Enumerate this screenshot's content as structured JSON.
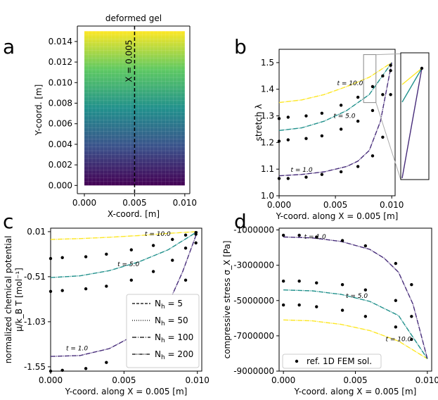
{
  "chart_data": [
    {
      "panel": "a",
      "type": "heatmap",
      "title": "deformed gel",
      "xlabel": "X-coord. [m]",
      "ylabel": "Y-coord. [m]",
      "xlim": [
        -0.0007,
        0.0105
      ],
      "ylim": [
        -0.0008,
        0.0155
      ],
      "xticks": [
        "0.000",
        "0.005",
        "0.010"
      ],
      "yticks": [
        "0.000",
        "0.002",
        "0.004",
        "0.006",
        "0.008",
        "0.010",
        "0.012",
        "0.014"
      ],
      "gel_x_range": [
        0.0,
        0.01
      ],
      "gel_y_range": [
        0.0,
        0.015
      ],
      "colormap": [
        "#440154",
        "#3b528b",
        "#21918c",
        "#5ec962",
        "#fde725"
      ],
      "cut_line_label": "X = 0.005",
      "cut_line_x": 0.005
    },
    {
      "panel": "b",
      "type": "line",
      "xlabel": "Y-coord. along X = 0.005 [m]",
      "ylabel": "stretch λ",
      "xlim": [
        0.0,
        0.0103
      ],
      "ylim": [
        1.0,
        1.55
      ],
      "xticks": [
        "0.000",
        "0.005",
        "0.010"
      ],
      "yticks": [
        "1.0",
        "1.1",
        "1.2",
        "1.3",
        "1.4",
        "1.5"
      ],
      "series": [
        {
          "name": "t = 10.0",
          "color": "#fde725",
          "x": [
            0.0,
            0.002,
            0.004,
            0.006,
            0.008,
            0.01
          ],
          "y": [
            1.35,
            1.36,
            1.38,
            1.41,
            1.445,
            1.5
          ]
        },
        {
          "name": "t = 5.0",
          "color": "#21918c",
          "x": [
            0.0,
            0.002,
            0.004,
            0.006,
            0.008,
            0.01
          ],
          "y": [
            1.245,
            1.255,
            1.28,
            1.32,
            1.38,
            1.5
          ]
        },
        {
          "name": "t = 1.0",
          "color": "#472c7a",
          "x": [
            0.0,
            0.002,
            0.004,
            0.006,
            0.007,
            0.008,
            0.009,
            0.01
          ],
          "y": [
            1.075,
            1.08,
            1.09,
            1.11,
            1.13,
            1.17,
            1.28,
            1.5
          ]
        }
      ],
      "series_labels": [
        "t = 10.0",
        "t = 5.0",
        "t = 1.0"
      ],
      "ref_points": [
        {
          "x": 0.0,
          "y": 1.29
        },
        {
          "x": 0.0008,
          "y": 1.295
        },
        {
          "x": 0.0024,
          "y": 1.3
        },
        {
          "x": 0.0038,
          "y": 1.31
        },
        {
          "x": 0.0055,
          "y": 1.34
        },
        {
          "x": 0.007,
          "y": 1.37
        },
        {
          "x": 0.0083,
          "y": 1.41
        },
        {
          "x": 0.0092,
          "y": 1.45
        },
        {
          "x": 0.0099,
          "y": 1.49
        },
        {
          "x": 0.0,
          "y": 1.205
        },
        {
          "x": 0.0008,
          "y": 1.21
        },
        {
          "x": 0.0024,
          "y": 1.215
        },
        {
          "x": 0.0038,
          "y": 1.225
        },
        {
          "x": 0.0055,
          "y": 1.25
        },
        {
          "x": 0.007,
          "y": 1.28
        },
        {
          "x": 0.0083,
          "y": 1.32
        },
        {
          "x": 0.0092,
          "y": 1.38
        },
        {
          "x": 0.0099,
          "y": 1.47
        },
        {
          "x": 0.0,
          "y": 1.065
        },
        {
          "x": 0.0008,
          "y": 1.065
        },
        {
          "x": 0.0024,
          "y": 1.07
        },
        {
          "x": 0.0038,
          "y": 1.08
        },
        {
          "x": 0.0055,
          "y": 1.09
        },
        {
          "x": 0.007,
          "y": 1.11
        },
        {
          "x": 0.0083,
          "y": 1.15
        },
        {
          "x": 0.0092,
          "y": 1.22
        },
        {
          "x": 0.0099,
          "y": 1.38
        }
      ]
    },
    {
      "panel": "c",
      "type": "line",
      "xlabel": "Y-coord. along X = 0.005 [m]",
      "ylabel": "normalized chemical potential",
      "ylabel_units": "μ/k_B T [mol⁻¹]",
      "xlim": [
        0.0,
        0.0103
      ],
      "ylim": [
        -1.6,
        0.05
      ],
      "xticks": [
        "0.000",
        "0.005",
        "0.010"
      ],
      "yticks": [
        "0.01",
        "-0.51",
        "-1.03",
        "-1.55"
      ],
      "series": [
        {
          "name": "t = 10.0",
          "color": "#fde725",
          "x": [
            0.0,
            0.002,
            0.004,
            0.006,
            0.008,
            0.01
          ],
          "y": [
            -0.08,
            -0.07,
            -0.055,
            -0.035,
            -0.01,
            0.01
          ]
        },
        {
          "name": "t = 5.0",
          "color": "#21918c",
          "x": [
            0.0,
            0.002,
            0.004,
            0.006,
            0.008,
            0.01
          ],
          "y": [
            -0.52,
            -0.5,
            -0.44,
            -0.34,
            -0.2,
            0.01
          ]
        },
        {
          "name": "t = 1.0",
          "color": "#472c7a",
          "x": [
            0.0,
            0.002,
            0.004,
            0.006,
            0.007,
            0.008,
            0.009,
            0.01
          ],
          "y": [
            -1.43,
            -1.42,
            -1.34,
            -1.16,
            -1.02,
            -0.83,
            -0.45,
            0.01
          ]
        }
      ],
      "series_labels": [
        "t = 10.0",
        "t = 5.0",
        "t = 1.0"
      ],
      "ref_points": [
        {
          "x": 0.0,
          "y": -0.3
        },
        {
          "x": 0.0008,
          "y": -0.29
        },
        {
          "x": 0.0024,
          "y": -0.28
        },
        {
          "x": 0.0038,
          "y": -0.25
        },
        {
          "x": 0.0055,
          "y": -0.2
        },
        {
          "x": 0.007,
          "y": -0.15
        },
        {
          "x": 0.0083,
          "y": -0.08
        },
        {
          "x": 0.0092,
          "y": -0.03
        },
        {
          "x": 0.0099,
          "y": 0.0
        },
        {
          "x": 0.0,
          "y": -0.68
        },
        {
          "x": 0.0008,
          "y": -0.67
        },
        {
          "x": 0.0024,
          "y": -0.65
        },
        {
          "x": 0.0038,
          "y": -0.62
        },
        {
          "x": 0.0055,
          "y": -0.55
        },
        {
          "x": 0.007,
          "y": -0.45
        },
        {
          "x": 0.0083,
          "y": -0.32
        },
        {
          "x": 0.0092,
          "y": -0.18
        },
        {
          "x": 0.0099,
          "y": -0.02
        },
        {
          "x": 0.0,
          "y": -1.6
        },
        {
          "x": 0.0008,
          "y": -1.59
        },
        {
          "x": 0.0024,
          "y": -1.57
        },
        {
          "x": 0.0038,
          "y": -1.5
        },
        {
          "x": 0.0055,
          "y": -1.37
        },
        {
          "x": 0.007,
          "y": -1.18
        },
        {
          "x": 0.0083,
          "y": -0.92
        },
        {
          "x": 0.0092,
          "y": -0.55
        },
        {
          "x": 0.0099,
          "y": -0.12
        }
      ],
      "legend": {
        "placement": "lower-right",
        "entries": [
          {
            "name": "N_h = 5",
            "base": "N",
            "sub": "h",
            "rest": " = 5",
            "dash": "4,2"
          },
          {
            "name": "N_h = 50",
            "base": "N",
            "sub": "h",
            "rest": " = 50",
            "dash": "1,2"
          },
          {
            "name": "N_h = 100",
            "base": "N",
            "sub": "h",
            "rest": " = 100",
            "dash": "6,2,1,2"
          },
          {
            "name": "N_h = 200",
            "base": "N",
            "sub": "h",
            "rest": " = 200",
            "dash": "5,1,1,1,1,1"
          }
        ]
      }
    },
    {
      "panel": "d",
      "type": "line",
      "xlabel": "Y-coord. along X = 0.005 [m]",
      "ylabel": "compressive stress σ_X [Pa]",
      "xlim": [
        -0.0003,
        0.0103
      ],
      "ylim": [
        -9000000,
        -900000
      ],
      "xticks": [
        "0.000",
        "0.005",
        "0.010"
      ],
      "yticks": [
        "-1000000",
        "-3000000",
        "-5000000",
        "-7000000",
        "-9000000"
      ],
      "series": [
        {
          "name": "t = 10.0",
          "color": "#fde725",
          "x": [
            0.0,
            0.002,
            0.004,
            0.006,
            0.008,
            0.01
          ],
          "y": [
            -6100000,
            -6150000,
            -6350000,
            -6700000,
            -7300000,
            -8300000
          ]
        },
        {
          "name": "t = 5.0",
          "color": "#21918c",
          "x": [
            0.0,
            0.002,
            0.004,
            0.006,
            0.008,
            0.01
          ],
          "y": [
            -4400000,
            -4450000,
            -4650000,
            -5050000,
            -5850000,
            -8300000
          ]
        },
        {
          "name": "t = 1.0",
          "color": "#472c7a",
          "x": [
            0.0,
            0.002,
            0.004,
            0.006,
            0.007,
            0.008,
            0.009,
            0.01
          ],
          "y": [
            -1400000,
            -1450000,
            -1650000,
            -2100000,
            -2600000,
            -3400000,
            -5200000,
            -8300000
          ]
        }
      ],
      "series_labels": [
        "t = 10.0",
        "t = 5.0",
        "t = 1.0"
      ],
      "ref_points": [
        {
          "x": 0.0,
          "y": -1300000
        },
        {
          "x": 0.0011,
          "y": -1300000
        },
        {
          "x": 0.0023,
          "y": -1400000
        },
        {
          "x": 0.0041,
          "y": -1600000
        },
        {
          "x": 0.0057,
          "y": -1900000
        },
        {
          "x": 0.0078,
          "y": -2900000
        },
        {
          "x": 0.0089,
          "y": -4100000
        },
        {
          "x": 0.0,
          "y": -3900000
        },
        {
          "x": 0.0011,
          "y": -3900000
        },
        {
          "x": 0.0023,
          "y": -4000000
        },
        {
          "x": 0.0041,
          "y": -4100000
        },
        {
          "x": 0.0057,
          "y": -4400000
        },
        {
          "x": 0.0078,
          "y": -5000000
        },
        {
          "x": 0.0089,
          "y": -5900000
        },
        {
          "x": 0.0,
          "y": -5250000
        },
        {
          "x": 0.0011,
          "y": -5250000
        },
        {
          "x": 0.0023,
          "y": -5350000
        },
        {
          "x": 0.0041,
          "y": -5550000
        },
        {
          "x": 0.0057,
          "y": -5900000
        },
        {
          "x": 0.0078,
          "y": -6500000
        },
        {
          "x": 0.0089,
          "y": -7200000
        }
      ],
      "legend": {
        "placement": "lower-left",
        "entries": [
          {
            "name": "ref. 1D FEM sol."
          }
        ]
      }
    }
  ],
  "panel_letters": [
    "a",
    "b",
    "c",
    "d"
  ]
}
